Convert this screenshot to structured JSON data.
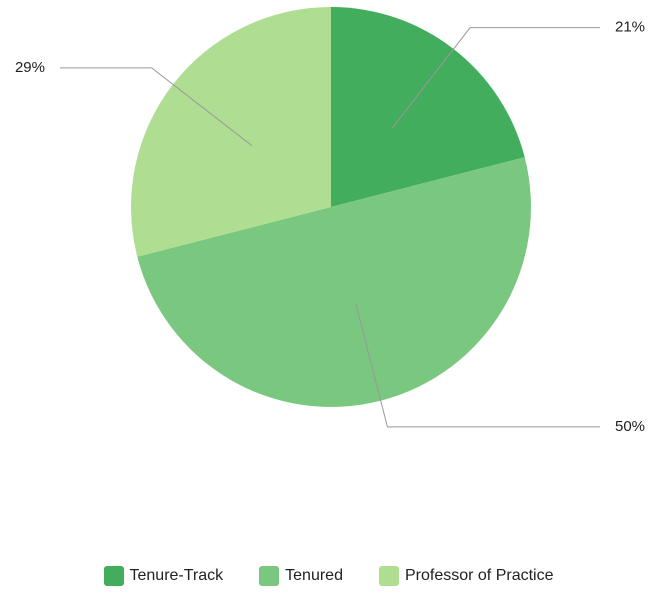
{
  "chart_data": {
    "type": "pie",
    "categories": [
      "Tenure-Track",
      "Tenured",
      "Professor of Practice"
    ],
    "values": [
      21,
      50,
      29
    ],
    "value_labels": [
      "21%",
      "50%",
      "29%"
    ],
    "colors": [
      "#41ad5d",
      "#7ac87f",
      "#afdd91"
    ],
    "legend": "bottom"
  }
}
